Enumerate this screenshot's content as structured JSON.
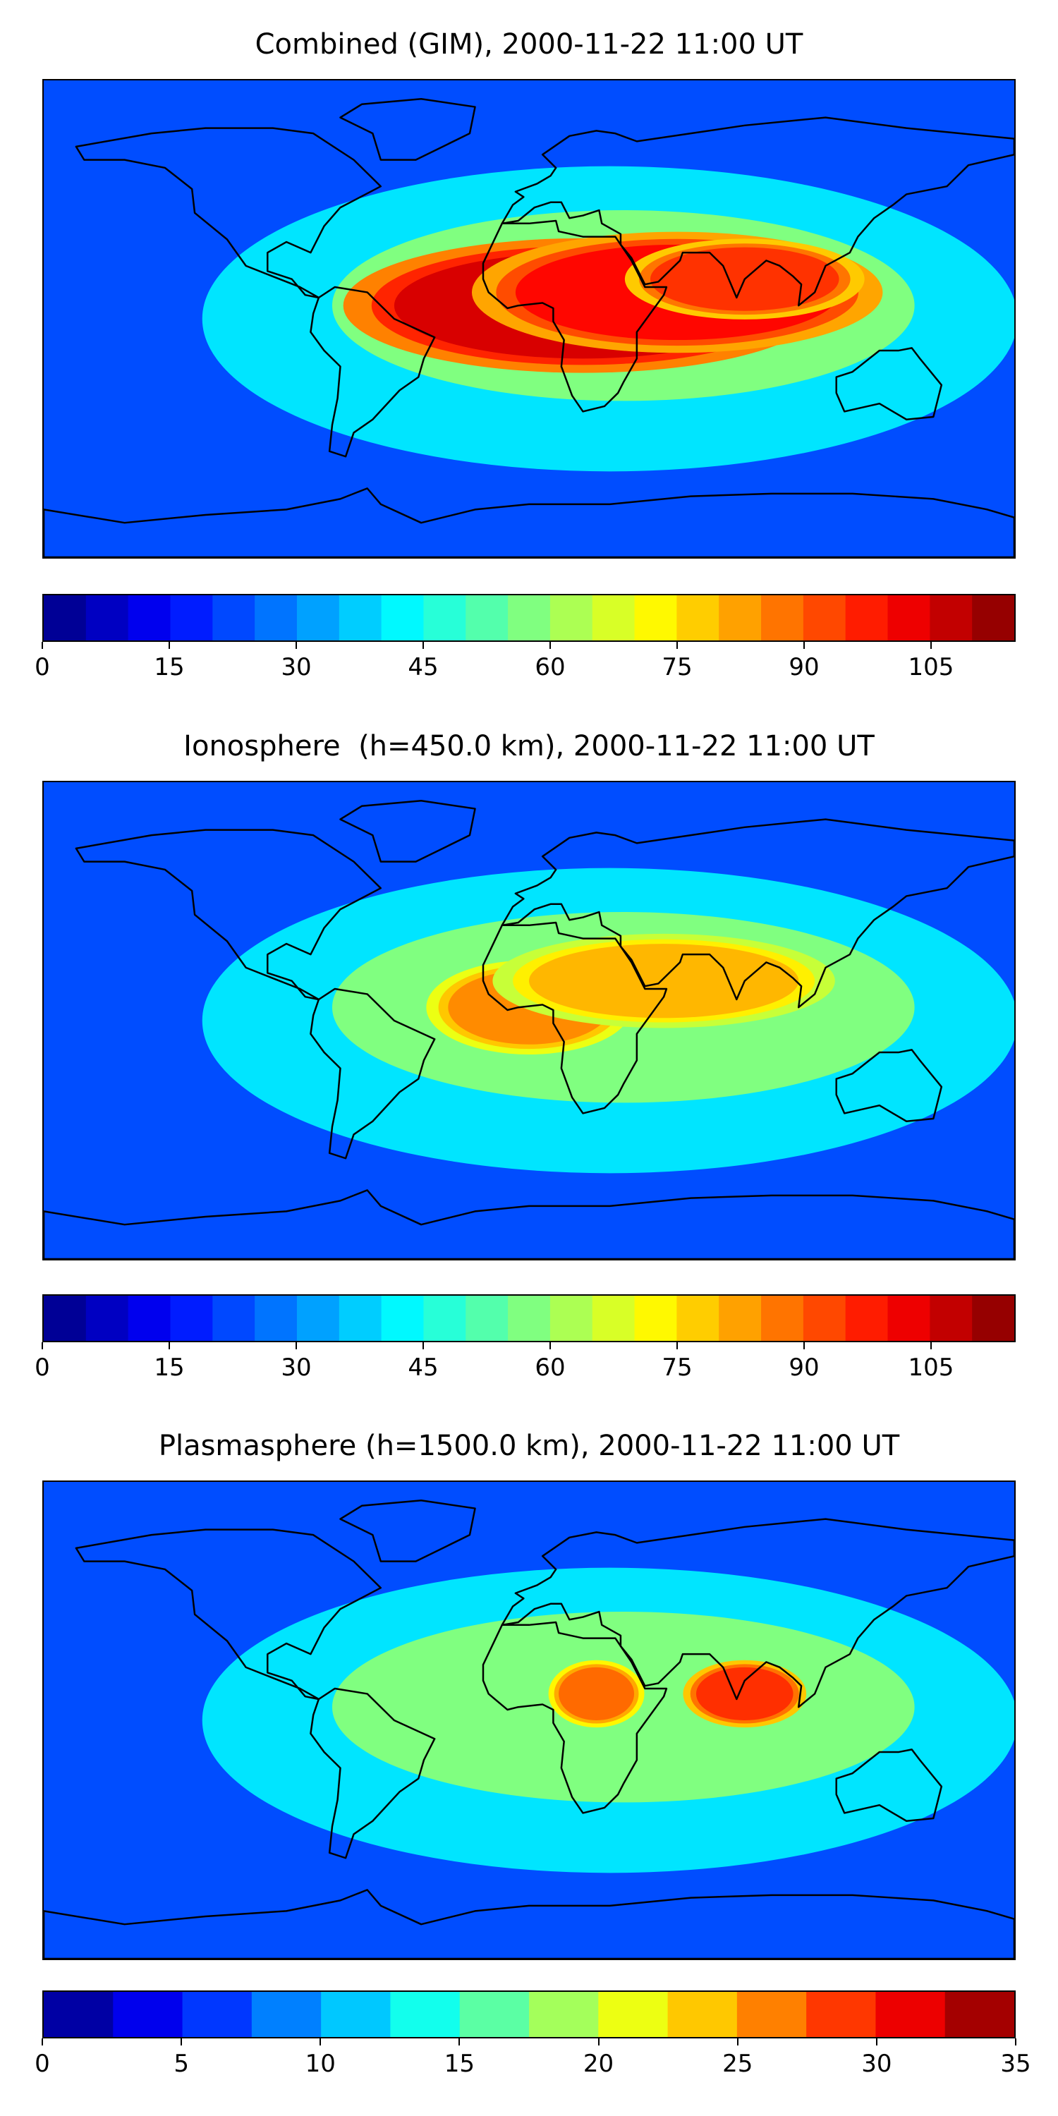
{
  "panels": [
    {
      "title": "Combined (GIM), 2000-11-22 11:00 UT",
      "color_levels": [
        0,
        5,
        10,
        15,
        20,
        25,
        30,
        35,
        40,
        45,
        50,
        55,
        60,
        65,
        70,
        75,
        80,
        85,
        90,
        95,
        100,
        105,
        110,
        115
      ],
      "tick_labels": [
        "0",
        "15",
        "30",
        "45",
        "60",
        "75",
        "90",
        "105"
      ],
      "hotspots": [
        {
          "lon": 20,
          "lat": 5,
          "value": 105,
          "rx": 70,
          "ry": 20
        },
        {
          "lon": 55,
          "lat": 10,
          "value": 100,
          "rx": 60,
          "ry": 18
        },
        {
          "lon": 80,
          "lat": 15,
          "value": 95,
          "rx": 35,
          "ry": 12
        }
      ]
    },
    {
      "title": "Ionosphere  (h=450.0 km), 2000-11-22 11:00 UT",
      "color_levels": [
        0,
        5,
        10,
        15,
        20,
        25,
        30,
        35,
        40,
        45,
        50,
        55,
        60,
        65,
        70,
        75,
        80,
        85,
        90,
        95,
        100,
        105,
        110,
        115
      ],
      "tick_labels": [
        "0",
        "15",
        "30",
        "45",
        "60",
        "75",
        "90",
        "105"
      ],
      "hotspots": [
        {
          "lon": 0,
          "lat": 5,
          "value": 85,
          "rx": 30,
          "ry": 14
        },
        {
          "lon": 50,
          "lat": 15,
          "value": 80,
          "rx": 50,
          "ry": 14
        }
      ]
    },
    {
      "title": "Plasmasphere (h=1500.0 km), 2000-11-22 11:00 UT",
      "color_levels": [
        0,
        2.5,
        5,
        7.5,
        10,
        12.5,
        15,
        17.5,
        20,
        22.5,
        25,
        27.5,
        30,
        32.5,
        35
      ],
      "tick_labels": [
        "0",
        "5",
        "10",
        "15",
        "20",
        "25",
        "30",
        "35"
      ],
      "hotspots": [
        {
          "lon": 25,
          "lat": 10,
          "value": 27,
          "rx": 14,
          "ry": 10
        },
        {
          "lon": 80,
          "lat": 10,
          "value": 29,
          "rx": 18,
          "ry": 10
        }
      ]
    }
  ],
  "colormap": "jet"
}
